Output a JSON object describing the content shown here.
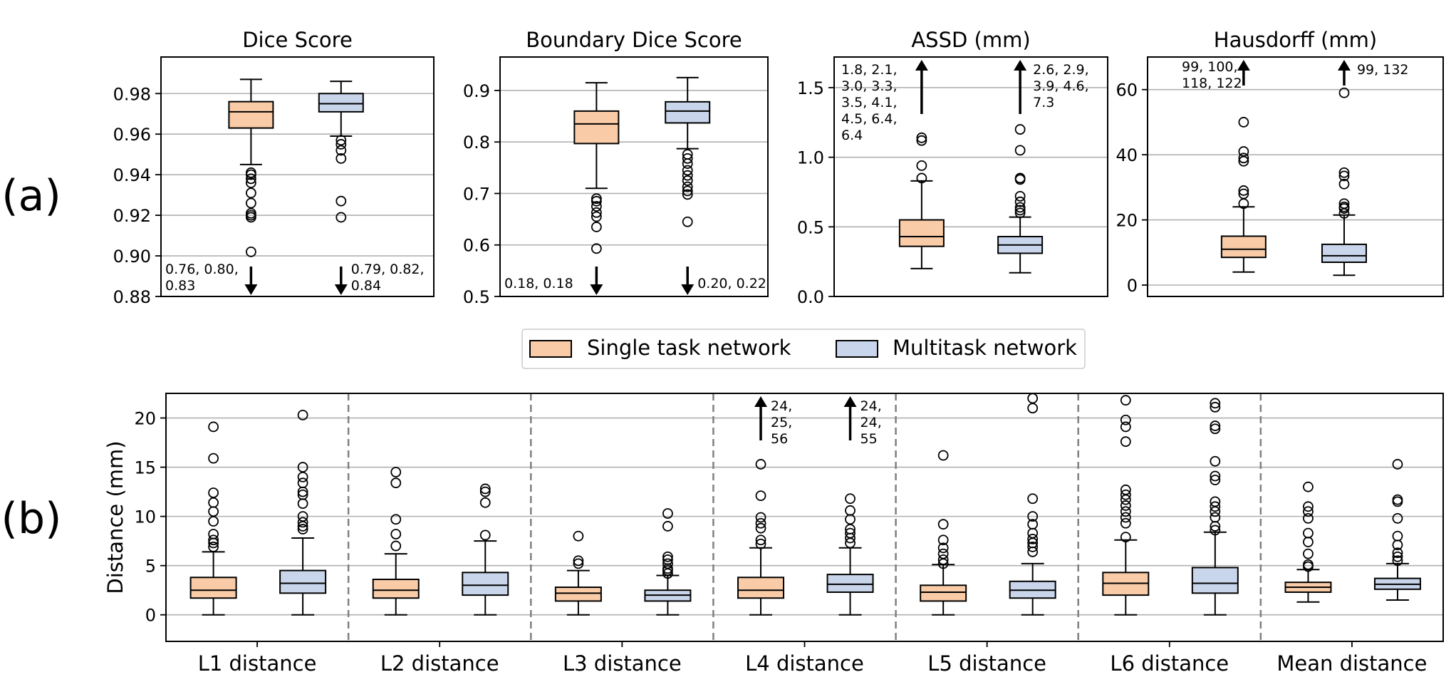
{
  "colors": {
    "single": "#f9cba7",
    "multi": "#c9d5ea",
    "stroke": "#000000",
    "grid": "#b0b0b0",
    "divider": "#808080"
  },
  "panel_labels": [
    "(a)",
    "(b)"
  ],
  "legend": {
    "single": "Single task network",
    "multi": "Multitask network"
  },
  "chart_data": [
    {
      "type": "box",
      "title": "Dice Score",
      "ylim": [
        0.88,
        0.998
      ],
      "yticks": [
        0.88,
        0.9,
        0.92,
        0.94,
        0.96,
        0.98
      ],
      "ytick_labels": [
        "0.88",
        "0.90",
        "0.92",
        "0.94",
        "0.96",
        "0.98"
      ],
      "ylabel": "",
      "series": [
        {
          "name": "Single task network",
          "whislo": 0.945,
          "q1": 0.963,
          "med": 0.971,
          "q3": 0.976,
          "whishi": 0.987,
          "fliers": [
            0.941,
            0.94,
            0.938,
            0.936,
            0.931,
            0.926,
            0.921,
            0.92,
            0.919,
            0.902
          ],
          "off_scale": {
            "direction": "down",
            "text": "0.76, 0.80,\n0.83"
          }
        },
        {
          "name": "Multitask network",
          "whislo": 0.959,
          "q1": 0.971,
          "med": 0.975,
          "q3": 0.98,
          "whishi": 0.986,
          "fliers": [
            0.957,
            0.955,
            0.952,
            0.948,
            0.927,
            0.919
          ],
          "off_scale": {
            "direction": "down",
            "text": "0.79, 0.82,\n0.84"
          }
        }
      ]
    },
    {
      "type": "box",
      "title": "Boundary Dice Score",
      "ylim": [
        0.5,
        0.965
      ],
      "yticks": [
        0.5,
        0.6,
        0.7,
        0.8,
        0.9
      ],
      "ytick_labels": [
        "0.5",
        "0.6",
        "0.7",
        "0.8",
        "0.9"
      ],
      "ylabel": "",
      "series": [
        {
          "name": "Single task network",
          "whislo": 0.71,
          "q1": 0.797,
          "med": 0.835,
          "q3": 0.86,
          "whishi": 0.915,
          "fliers": [
            0.69,
            0.685,
            0.675,
            0.663,
            0.655,
            0.635,
            0.593
          ],
          "off_scale": {
            "direction": "down",
            "text": "0.18, 0.18"
          }
        },
        {
          "name": "Multitask network",
          "whislo": 0.787,
          "q1": 0.837,
          "med": 0.86,
          "q3": 0.878,
          "whishi": 0.925,
          "fliers": [
            0.776,
            0.768,
            0.758,
            0.745,
            0.735,
            0.725,
            0.713,
            0.705,
            0.698,
            0.645
          ],
          "off_scale": {
            "direction": "up_none_down",
            "text": "0.20, 0.22"
          }
        }
      ]
    },
    {
      "type": "box",
      "title": "ASSD (mm)",
      "ylim": [
        0.0,
        1.72
      ],
      "yticks": [
        0.0,
        0.5,
        1.0,
        1.5
      ],
      "ytick_labels": [
        "0.0",
        "0.5",
        "1.0",
        "1.5"
      ],
      "ylabel": "",
      "series": [
        {
          "name": "Single task network",
          "whislo": 0.2,
          "q1": 0.36,
          "med": 0.43,
          "q3": 0.55,
          "whishi": 0.83,
          "fliers": [
            0.85,
            0.94,
            1.12,
            1.14
          ],
          "off_scale": {
            "direction": "up",
            "text": "1.8, 2.1,\n3.0, 3.3,\n3.5, 4.1,\n4.5, 6.4,\n6.4"
          }
        },
        {
          "name": "Multitask network",
          "whislo": 0.17,
          "q1": 0.31,
          "med": 0.37,
          "q3": 0.43,
          "whishi": 0.57,
          "fliers": [
            0.6,
            0.62,
            0.64,
            0.68,
            0.72,
            0.84,
            0.85,
            1.05,
            1.2
          ],
          "off_scale": {
            "direction": "up",
            "text": "2.6, 2.9,\n3.9, 4.6,\n7.3"
          }
        }
      ]
    },
    {
      "type": "box",
      "title": "Hausdorff (mm)",
      "ylim": [
        -3.5,
        70
      ],
      "yticks": [
        0,
        20,
        40,
        60
      ],
      "ytick_labels": [
        "0",
        "20",
        "40",
        "60"
      ],
      "ylabel": "",
      "series": [
        {
          "name": "Single task network",
          "whislo": 4,
          "q1": 8.5,
          "med": 11,
          "q3": 15,
          "whishi": 24,
          "fliers": [
            25,
            28,
            29,
            38,
            39,
            41,
            50
          ],
          "off_scale": {
            "direction": "up",
            "text": "99, 100,\n118, 122"
          }
        },
        {
          "name": "Multitask network",
          "whislo": 3,
          "q1": 7,
          "med": 9,
          "q3": 12.5,
          "whishi": 21.5,
          "fliers": [
            22,
            23.5,
            24,
            25,
            31,
            33.5,
            34.5,
            59
          ],
          "off_scale": {
            "direction": "up",
            "text": "99, 132"
          }
        }
      ]
    },
    {
      "type": "box",
      "title": "",
      "ylabel": "Distance (mm)",
      "ylim": [
        -2.7,
        22.5
      ],
      "yticks": [
        0,
        5,
        10,
        15,
        20
      ],
      "ytick_labels": [
        "0",
        "5",
        "10",
        "15",
        "20"
      ],
      "categories": [
        "L1 distance",
        "L2 distance",
        "L3 distance",
        "L4 distance",
        "L5 distance",
        "L6 distance",
        "Mean distance"
      ],
      "series": [
        {
          "name": "Single task network",
          "boxes": [
            {
              "whislo": 0,
              "q1": 1.7,
              "med": 2.5,
              "q3": 3.8,
              "whishi": 6.4,
              "fliers": [
                6.9,
                7.3,
                7.6,
                8.2,
                9.5,
                10.5,
                11.4,
                12.4,
                15.9,
                19.1
              ]
            },
            {
              "whislo": 0,
              "q1": 1.7,
              "med": 2.5,
              "q3": 3.6,
              "whishi": 6.2,
              "fliers": [
                7.0,
                8.2,
                9.7,
                13.4,
                14.5
              ]
            },
            {
              "whislo": 0,
              "q1": 1.4,
              "med": 2.2,
              "q3": 2.8,
              "whishi": 4.5,
              "fliers": [
                5.2,
                5.5,
                8.0
              ]
            },
            {
              "whislo": 0,
              "q1": 1.7,
              "med": 2.5,
              "q3": 3.8,
              "whishi": 6.8,
              "fliers": [
                7.2,
                7.6,
                8.8,
                9.3,
                9.9,
                12.1,
                15.3
              ],
              "off_scale": {
                "direction": "up",
                "text": "24,\n25,\n56"
              }
            },
            {
              "whislo": 0,
              "q1": 1.4,
              "med": 2.3,
              "q3": 3.0,
              "whishi": 5.1,
              "fliers": [
                5.2,
                5.6,
                6.2,
                6.8,
                7.6,
                9.2,
                16.2
              ]
            },
            {
              "whislo": 0,
              "q1": 2.0,
              "med": 3.2,
              "q3": 4.3,
              "whishi": 7.6,
              "fliers": [
                7.9,
                9.3,
                9.9,
                10.5,
                11.1,
                11.7,
                12.2,
                12.7,
                17.6,
                19.1,
                19.8,
                21.8
              ]
            },
            {
              "whislo": 1.3,
              "q1": 2.3,
              "med": 2.8,
              "q3": 3.3,
              "whishi": 4.6,
              "fliers": [
                4.9,
                5.1,
                6.2,
                7.4,
                8.3,
                9.8,
                10.5,
                11.0,
                13.0
              ]
            }
          ]
        },
        {
          "name": "Multitask network",
          "boxes": [
            {
              "whislo": 0,
              "q1": 2.2,
              "med": 3.2,
              "q3": 4.5,
              "whishi": 7.8,
              "fliers": [
                8.7,
                9.0,
                9.4,
                10.0,
                11.3,
                12.2,
                12.5,
                13.4,
                14.0,
                15.0,
                20.3
              ]
            },
            {
              "whislo": 0,
              "q1": 2.0,
              "med": 3.0,
              "q3": 4.3,
              "whishi": 7.5,
              "fliers": [
                8.1,
                11.4,
                12.5,
                12.8
              ]
            },
            {
              "whislo": 0,
              "q1": 1.4,
              "med": 2.0,
              "q3": 2.5,
              "whishi": 4.0,
              "fliers": [
                4.2,
                4.5,
                4.7,
                5.2,
                5.6,
                5.9,
                9.0,
                10.3
              ]
            },
            {
              "whislo": 0,
              "q1": 2.3,
              "med": 3.1,
              "q3": 4.1,
              "whishi": 6.8,
              "fliers": [
                7.3,
                7.8,
                8.3,
                8.7,
                9.7,
                10.6,
                11.8
              ],
              "off_scale": {
                "direction": "up",
                "text": "24,\n24,\n55"
              }
            },
            {
              "whislo": 0,
              "q1": 1.7,
              "med": 2.5,
              "q3": 3.4,
              "whishi": 5.2,
              "fliers": [
                6.4,
                6.9,
                7.3,
                7.7,
                8.3,
                9.2,
                10.0,
                11.8,
                21.0,
                22.0
              ]
            },
            {
              "whislo": 0,
              "q1": 2.2,
              "med": 3.2,
              "q3": 4.8,
              "whishi": 8.4,
              "fliers": [
                8.6,
                9.0,
                9.9,
                10.5,
                11.0,
                11.5,
                13.7,
                14.1,
                15.6,
                18.9,
                19.2,
                21.1,
                21.5
              ]
            },
            {
              "whislo": 1.5,
              "q1": 2.6,
              "med": 3.1,
              "q3": 3.7,
              "whishi": 5.2,
              "fliers": [
                5.5,
                5.9,
                6.3,
                7.1,
                8.0,
                9.8,
                11.5,
                11.7,
                15.3
              ]
            }
          ]
        }
      ]
    }
  ]
}
